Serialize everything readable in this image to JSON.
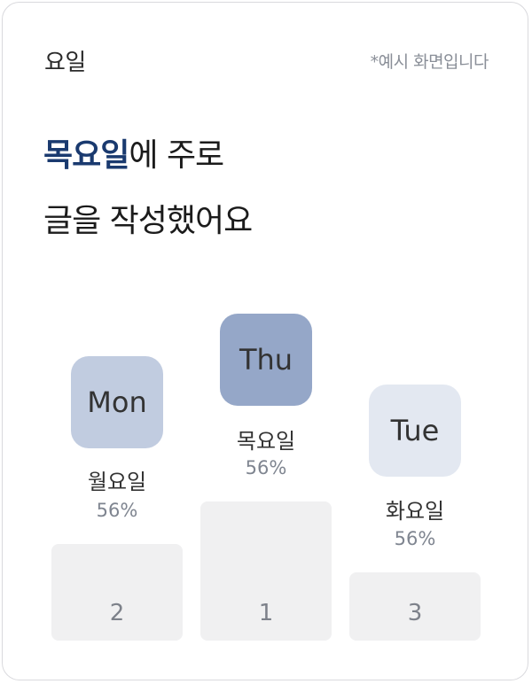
{
  "header": {
    "title": "요일",
    "note": "*예시 화면입니다"
  },
  "headline": {
    "highlight": "목요일",
    "line1_rest": "에 주로",
    "line2": "글을 작성했어요"
  },
  "colors": {
    "highlight": "#1a3a6f",
    "badge_first": "#95a7c8",
    "badge_second": "#c1cce0",
    "badge_third": "#e3e8f1",
    "podium": "#f0f0f1"
  },
  "podium": [
    {
      "rank": "2",
      "badge": "Mon",
      "day": "월요일",
      "percent": "56%"
    },
    {
      "rank": "1",
      "badge": "Thu",
      "day": "목요일",
      "percent": "56%"
    },
    {
      "rank": "3",
      "badge": "Tue",
      "day": "화요일",
      "percent": "56%"
    }
  ]
}
